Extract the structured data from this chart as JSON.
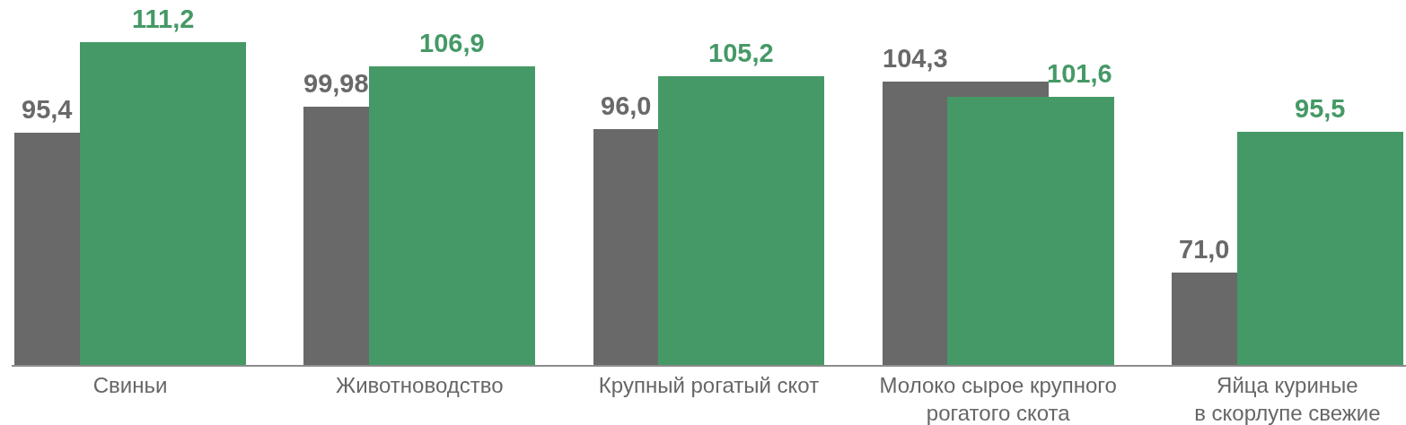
{
  "chart_data": {
    "type": "bar",
    "categories": [
      "Свиньи",
      "Животноводство",
      "Крупный рогатый скот",
      "Молоко сырое крупного\nрогатого скота",
      "Яйца куриные\nв скорлупе свежие"
    ],
    "series": [
      {
        "color": "#696969",
        "values": [
          95.4,
          99.98,
          96.0,
          104.3,
          71.0
        ],
        "value_labels": [
          "95,4",
          "99,98",
          "96,0",
          "104,3",
          "71,0"
        ]
      },
      {
        "color": "#459966",
        "values": [
          111.2,
          106.9,
          105.2,
          101.6,
          95.5
        ],
        "value_labels": [
          "111,2",
          "106,9",
          "105,2",
          "101,6",
          "95,5"
        ]
      }
    ],
    "ylim": [
      55,
      118.5
    ],
    "tick_labels": "x"
  }
}
